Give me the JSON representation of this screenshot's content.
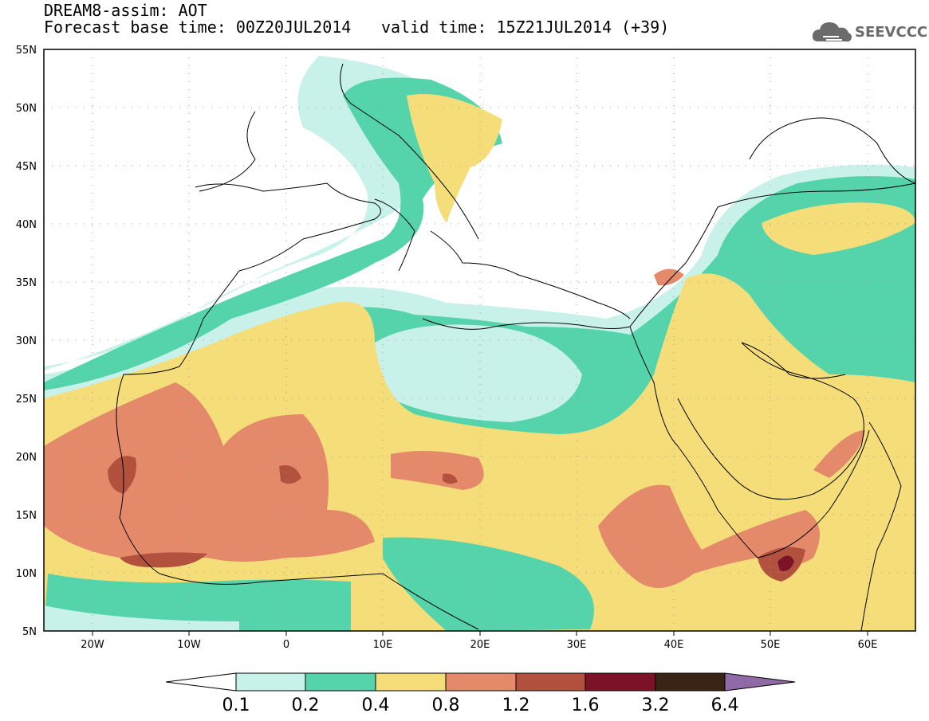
{
  "header": {
    "title": "DREAM8-assim: AOT",
    "base_time": "Forecast base time: 00Z20JUL2014",
    "valid_time": "valid time: 15Z21JUL2014 (+39)",
    "logo_text": "SEEVCCC",
    "logo_icon": "cloud-logo-icon"
  },
  "map": {
    "lon_range": [
      -25,
      65
    ],
    "lat_range": [
      5,
      55
    ],
    "lat_labels": [
      "5N",
      "10N",
      "15N",
      "20N",
      "25N",
      "30N",
      "35N",
      "40N",
      "45N",
      "50N",
      "55N"
    ],
    "lon_labels": [
      "20W",
      "10W",
      "0",
      "10E",
      "20E",
      "30E",
      "40E",
      "50E",
      "60E"
    ],
    "grid": "dotted"
  },
  "colorbar": {
    "levels": [
      "0.1",
      "0.2",
      "0.4",
      "0.8",
      "1.2",
      "1.6",
      "3.2",
      "6.4"
    ],
    "colors": [
      "#c8f1ea",
      "#55d4ac",
      "#f5de7a",
      "#e48a6a",
      "#b2523e",
      "#7c1228",
      "#3a2416",
      "#8f6aa6"
    ],
    "under_color": "#ffffff"
  }
}
